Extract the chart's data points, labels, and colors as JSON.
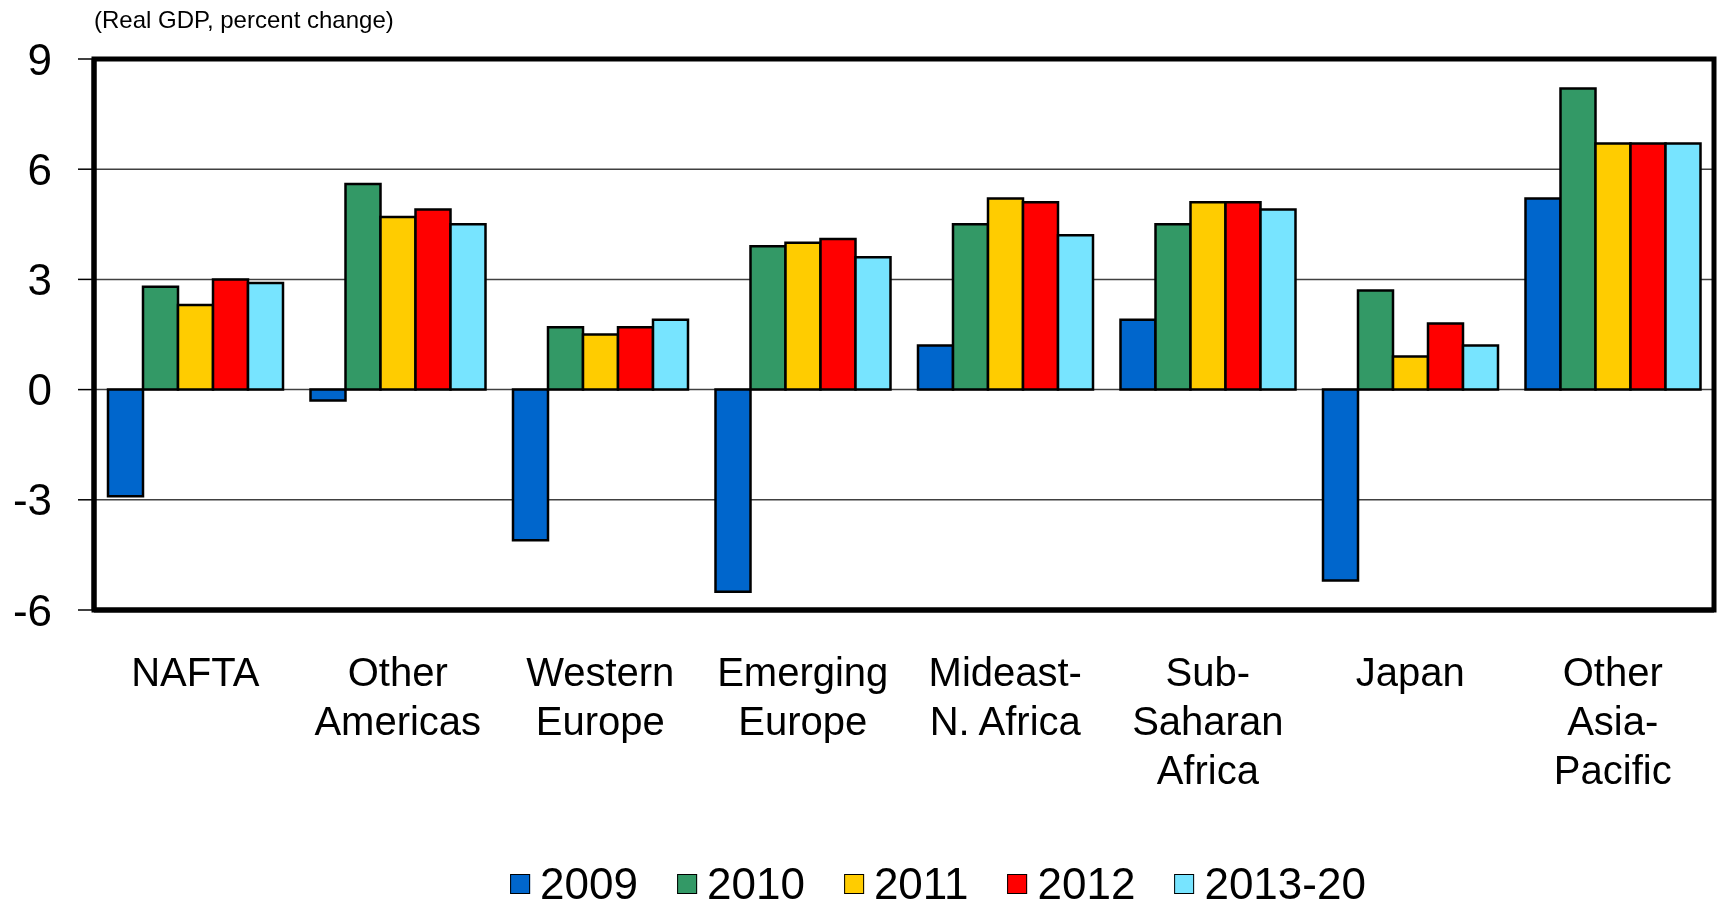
{
  "chart_data": {
    "type": "bar",
    "ylabel": "(Real GDP, percent change)",
    "categories": [
      "NAFTA",
      "Other Americas",
      "Western Europe",
      "Emerging Europe",
      "Mideast-N. Africa",
      "Sub-Saharan Africa",
      "Japan",
      "Other Asia-Pacific"
    ],
    "series": [
      {
        "name": "2009",
        "color": "#0066cc",
        "values": [
          -2.9,
          -0.3,
          -4.1,
          -5.5,
          1.2,
          1.9,
          -5.2,
          5.2
        ]
      },
      {
        "name": "2010",
        "color": "#339966",
        "values": [
          2.8,
          5.6,
          1.7,
          3.9,
          4.5,
          4.5,
          2.7,
          8.2
        ]
      },
      {
        "name": "2011",
        "color": "#ffcc00",
        "values": [
          2.3,
          4.7,
          1.5,
          4.0,
          5.2,
          5.1,
          0.9,
          6.7
        ]
      },
      {
        "name": "2012",
        "color": "#ff0000",
        "values": [
          3.0,
          4.9,
          1.7,
          4.1,
          5.1,
          5.1,
          1.8,
          6.7
        ]
      },
      {
        "name": "2013-20",
        "color": "#77e4ff",
        "values": [
          2.9,
          4.5,
          1.9,
          3.6,
          4.2,
          4.9,
          1.2,
          6.7
        ]
      }
    ],
    "ylim": [
      -6,
      9
    ],
    "yticks": [
      -6,
      -3,
      0,
      3,
      6,
      9
    ],
    "grid": "y",
    "legend": "bottom"
  }
}
